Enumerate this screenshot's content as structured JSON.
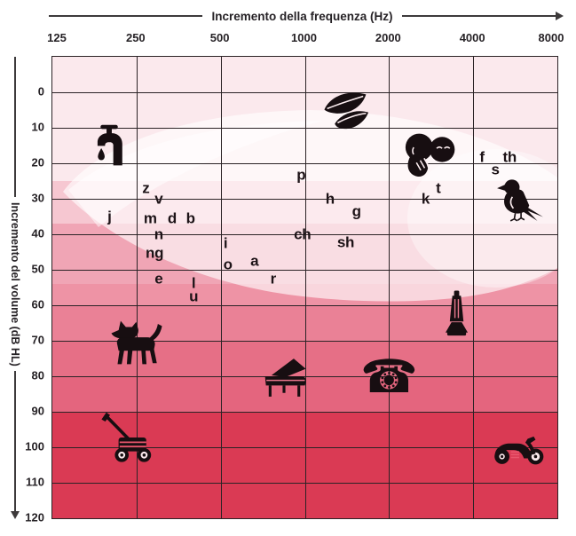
{
  "x_axis": {
    "title": "Incremento della frequenza (Hz)",
    "ticks": [
      "125",
      "250",
      "500",
      "1000",
      "2000",
      "4000",
      "8000"
    ]
  },
  "y_axis": {
    "title": "Incremento del volume (dB HL)",
    "ticks": [
      "0",
      "10",
      "20",
      "30",
      "40",
      "50",
      "60",
      "70",
      "80",
      "90",
      "100",
      "110",
      "120"
    ]
  },
  "chart_data": {
    "type": "scatter",
    "xlabel": "Incremento della frequenza (Hz)",
    "ylabel": "Incremento del volume (dB HL)",
    "x_scale": "log2",
    "x_range_hz": [
      125,
      8000
    ],
    "y_range_db": [
      -10,
      120
    ],
    "grid": {
      "horizontal_step_db": 10,
      "vertical_lines_hz": [
        125,
        250,
        500,
        1000,
        2000,
        4000,
        8000
      ],
      "line_color": "#2b2326"
    },
    "volume_bands": [
      {
        "from_db": -10,
        "to_db": 25,
        "color": "#fbe9ed"
      },
      {
        "from_db": 25,
        "to_db": 37,
        "color": "#f6c7d1"
      },
      {
        "from_db": 37,
        "to_db": 54,
        "color": "#f0a5b5"
      },
      {
        "from_db": 54,
        "to_db": 60,
        "color": "#ee93a5"
      },
      {
        "from_db": 60,
        "to_db": 70,
        "color": "#ea8196"
      },
      {
        "from_db": 70,
        "to_db": 80,
        "color": "#e66f86"
      },
      {
        "from_db": 80,
        "to_db": 90,
        "color": "#e4657e"
      },
      {
        "from_db": 90,
        "to_db": 120,
        "color": "#da3a54"
      }
    ],
    "speech_banana": {
      "fill": "rgba(255,255,255,0.62)",
      "description": "lighter curved region sweeping across the chart that contains the speech phonemes"
    },
    "phonemes": [
      {
        "label": "z",
        "hz": 270,
        "db": 27
      },
      {
        "label": "v",
        "hz": 300,
        "db": 30
      },
      {
        "label": "j",
        "hz": 200,
        "db": 35
      },
      {
        "label": "m",
        "hz": 280,
        "db": 35.5
      },
      {
        "label": "d",
        "hz": 335,
        "db": 35.5
      },
      {
        "label": "b",
        "hz": 390,
        "db": 35.5
      },
      {
        "label": "n",
        "hz": 300,
        "db": 40
      },
      {
        "label": "ng",
        "hz": 290,
        "db": 45.3
      },
      {
        "label": "e",
        "hz": 300,
        "db": 52.5
      },
      {
        "label": "l",
        "hz": 400,
        "db": 53.8
      },
      {
        "label": "u",
        "hz": 400,
        "db": 57.5
      },
      {
        "label": "i",
        "hz": 520,
        "db": 42.5
      },
      {
        "label": "o",
        "hz": 530,
        "db": 48.5
      },
      {
        "label": "a",
        "hz": 660,
        "db": 47.5
      },
      {
        "label": "r",
        "hz": 770,
        "db": 52.5
      },
      {
        "label": "p",
        "hz": 970,
        "db": 23.3
      },
      {
        "label": "ch",
        "hz": 980,
        "db": 40
      },
      {
        "label": "h",
        "hz": 1230,
        "db": 30
      },
      {
        "label": "g",
        "hz": 1530,
        "db": 33.5
      },
      {
        "label": "sh",
        "hz": 1400,
        "db": 42.3
      },
      {
        "label": "k",
        "hz": 2700,
        "db": 30
      },
      {
        "label": "t",
        "hz": 3000,
        "db": 27
      },
      {
        "label": "f",
        "hz": 4300,
        "db": 18.3
      },
      {
        "label": "s",
        "hz": 4800,
        "db": 21.8
      },
      {
        "label": "th",
        "hz": 5400,
        "db": 18.3
      }
    ],
    "sound_icons": [
      {
        "name": "faucet-drip",
        "hz": 200,
        "db": 15
      },
      {
        "name": "leaves",
        "hz": 1400,
        "db": 5
      },
      {
        "name": "whisper",
        "hz": 2800,
        "db": 17.5
      },
      {
        "name": "bird",
        "hz": 5900,
        "db": 30
      },
      {
        "name": "dog",
        "hz": 250,
        "db": 70.5
      },
      {
        "name": "vacuum",
        "hz": 3500,
        "db": 62.5
      },
      {
        "name": "piano",
        "hz": 840,
        "db": 80.3
      },
      {
        "name": "telephone",
        "hz": 2000,
        "db": 80.3
      },
      {
        "name": "lawnmower",
        "hz": 235,
        "db": 97.3
      },
      {
        "name": "motorcycle",
        "hz": 5800,
        "db": 100.3
      }
    ]
  }
}
